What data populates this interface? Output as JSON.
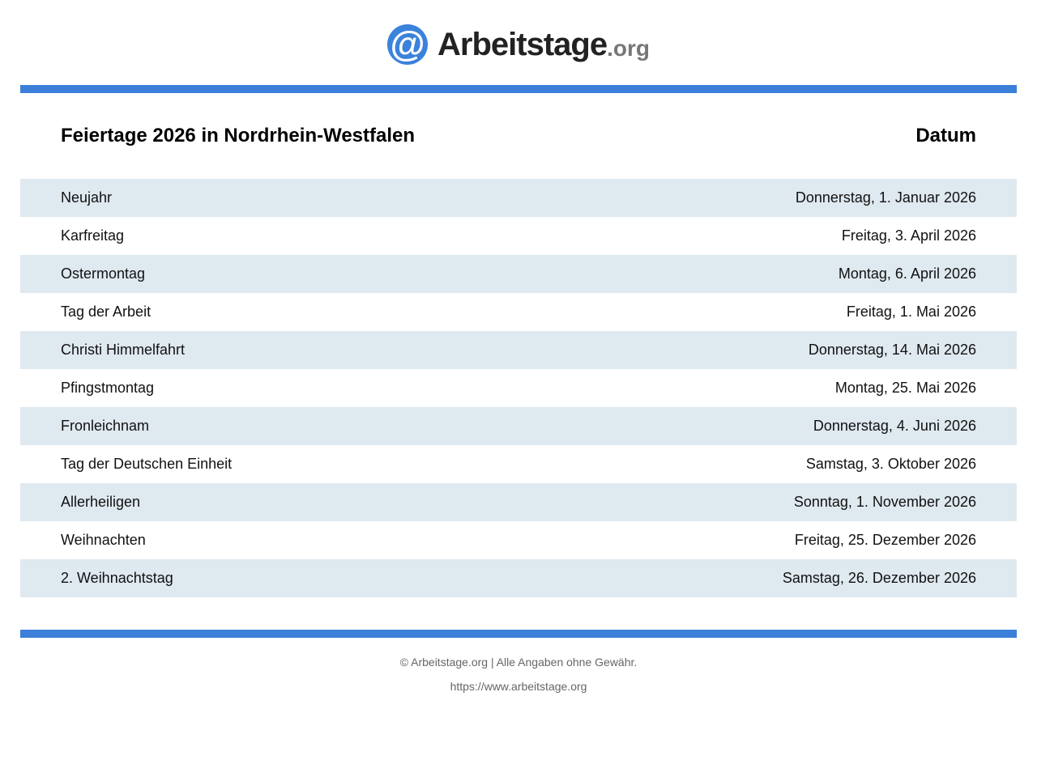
{
  "logo": {
    "icon": "@",
    "name": "Arbeitstage",
    "tld": ".org"
  },
  "colors": {
    "accent": "#3b7fdb",
    "row_stripe": "#dfe9f0"
  },
  "table": {
    "title": "Feiertage 2026 in Nordrhein-Westfalen",
    "date_header": "Datum",
    "rows": [
      {
        "name": "Neujahr",
        "date": "Donnerstag, 1. Januar 2026"
      },
      {
        "name": "Karfreitag",
        "date": "Freitag, 3. April 2026"
      },
      {
        "name": "Ostermontag",
        "date": "Montag, 6. April 2026"
      },
      {
        "name": "Tag der Arbeit",
        "date": "Freitag, 1. Mai 2026"
      },
      {
        "name": "Christi Himmelfahrt",
        "date": "Donnerstag, 14. Mai 2026"
      },
      {
        "name": "Pfingstmontag",
        "date": "Montag, 25. Mai 2026"
      },
      {
        "name": "Fronleichnam",
        "date": "Donnerstag, 4. Juni 2026"
      },
      {
        "name": "Tag der Deutschen Einheit",
        "date": "Samstag, 3. Oktober 2026"
      },
      {
        "name": "Allerheiligen",
        "date": "Sonntag, 1. November 2026"
      },
      {
        "name": "Weihnachten",
        "date": "Freitag, 25. Dezember 2026"
      },
      {
        "name": "2. Weihnachtstag",
        "date": "Samstag, 26. Dezember 2026"
      }
    ]
  },
  "footer": {
    "copyright": "© Arbeitstage.org | Alle Angaben ohne Gewähr.",
    "url": "https://www.arbeitstage.org"
  }
}
